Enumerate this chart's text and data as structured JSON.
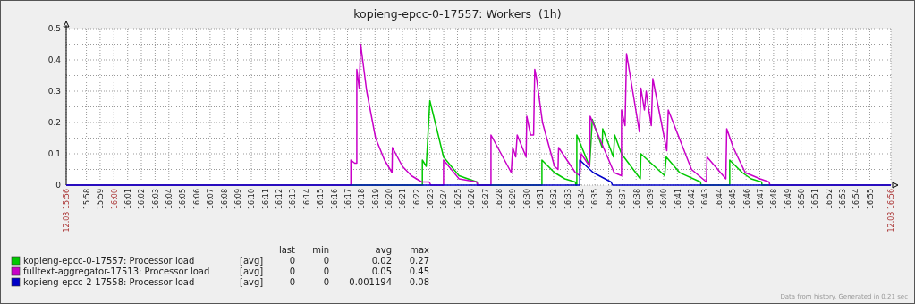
{
  "chart_data": {
    "type": "line",
    "title": "kopieng-epcc-0-17557: Workers  (1h)",
    "xlim": [
      15.9422,
      16.9422
    ],
    "xticks": [
      {
        "value": 15.9422,
        "label": "12.03 15:56"
      },
      {
        "value": 15.9667,
        "label": "15:58"
      },
      {
        "value": 15.9833,
        "label": "15:59"
      },
      {
        "value": 16,
        "label": "16:00"
      },
      {
        "value": 16.0167,
        "label": "16:01"
      },
      {
        "value": 16.0333,
        "label": "16:02"
      },
      {
        "value": 16.05,
        "label": "16:03"
      },
      {
        "value": 16.0667,
        "label": "16:04"
      },
      {
        "value": 16.0833,
        "label": "16:05"
      },
      {
        "value": 16.1,
        "label": "16:06"
      },
      {
        "value": 16.1167,
        "label": "16:07"
      },
      {
        "value": 16.1333,
        "label": "16:08"
      },
      {
        "value": 16.15,
        "label": "16:09"
      },
      {
        "value": 16.1667,
        "label": "16:10"
      },
      {
        "value": 16.1833,
        "label": "16:11"
      },
      {
        "value": 16.2,
        "label": "16:12"
      },
      {
        "value": 16.2167,
        "label": "16:13"
      },
      {
        "value": 16.2333,
        "label": "16:14"
      },
      {
        "value": 16.25,
        "label": "16:15"
      },
      {
        "value": 16.2667,
        "label": "16:16"
      },
      {
        "value": 16.2833,
        "label": "16:17"
      },
      {
        "value": 16.3,
        "label": "16:18"
      },
      {
        "value": 16.3167,
        "label": "16:19"
      },
      {
        "value": 16.3333,
        "label": "16:20"
      },
      {
        "value": 16.35,
        "label": "16:21"
      },
      {
        "value": 16.3667,
        "label": "16:22"
      },
      {
        "value": 16.3833,
        "label": "16:23"
      },
      {
        "value": 16.4,
        "label": "16:24"
      },
      {
        "value": 16.4167,
        "label": "16:25"
      },
      {
        "value": 16.4333,
        "label": "16:26"
      },
      {
        "value": 16.45,
        "label": "16:27"
      },
      {
        "value": 16.4667,
        "label": "16:28"
      },
      {
        "value": 16.4833,
        "label": "16:29"
      },
      {
        "value": 16.5,
        "label": "16:30"
      },
      {
        "value": 16.5167,
        "label": "16:31"
      },
      {
        "value": 16.5333,
        "label": "16:32"
      },
      {
        "value": 16.55,
        "label": "16:33"
      },
      {
        "value": 16.5667,
        "label": "16:34"
      },
      {
        "value": 16.5833,
        "label": "16:35"
      },
      {
        "value": 16.6,
        "label": "16:36"
      },
      {
        "value": 16.6167,
        "label": "16:37"
      },
      {
        "value": 16.6333,
        "label": "16:38"
      },
      {
        "value": 16.65,
        "label": "16:39"
      },
      {
        "value": 16.6667,
        "label": "16:40"
      },
      {
        "value": 16.6833,
        "label": "16:41"
      },
      {
        "value": 16.7,
        "label": "16:42"
      },
      {
        "value": 16.7167,
        "label": "16:43"
      },
      {
        "value": 16.7333,
        "label": "16:44"
      },
      {
        "value": 16.75,
        "label": "16:45"
      },
      {
        "value": 16.7667,
        "label": "16:46"
      },
      {
        "value": 16.7833,
        "label": "16:47"
      },
      {
        "value": 16.8,
        "label": "16:48"
      },
      {
        "value": 16.8167,
        "label": "16:49"
      },
      {
        "value": 16.8333,
        "label": "16:50"
      },
      {
        "value": 16.85,
        "label": "16:51"
      },
      {
        "value": 16.8667,
        "label": "16:52"
      },
      {
        "value": 16.8833,
        "label": "16:53"
      },
      {
        "value": 16.9,
        "label": "16:54"
      },
      {
        "value": 16.9167,
        "label": "16:55"
      },
      {
        "value": 16.9422,
        "label": "12.03 16:56"
      }
    ],
    "ylim": [
      0,
      0.5
    ],
    "yticks": [
      0,
      {
        "value": 0.05,
        "label": null
      },
      0.1,
      {
        "value": 0.15,
        "label": null
      },
      0.2,
      {
        "value": 0.25,
        "label": null
      },
      0.3,
      {
        "value": 0.35,
        "label": null
      },
      0.4,
      {
        "value": 0.45,
        "label": null
      },
      0.5
    ],
    "grid": true,
    "legend": "bottom",
    "line_style": "solid",
    "series": [
      {
        "name": "kopieng-epcc-0-17557: Processor load",
        "color": "#00c800",
        "x": [
          15.9422,
          16.3741,
          16.3741,
          16.3788,
          16.3832,
          16.3998,
          16.4186,
          16.4403,
          16.441,
          16.5191,
          16.5191,
          16.5343,
          16.5469,
          16.5596,
          16.5603,
          16.5614,
          16.5614,
          16.5769,
          16.5802,
          16.5921,
          16.5928,
          16.6058,
          16.6073,
          16.6156,
          16.6384,
          16.6391,
          16.668,
          16.6698,
          16.6861,
          16.7114,
          16.712,
          16.7468,
          16.7468,
          16.762,
          16.7728,
          16.7855,
          16.786,
          16.9422
        ],
        "values": [
          0,
          0,
          0.08,
          0.06,
          0.27,
          0.09,
          0.03,
          0.01,
          0,
          0,
          0.08,
          0.04,
          0.02,
          0.01,
          0,
          0,
          0.16,
          0.06,
          0.21,
          0.12,
          0.18,
          0.09,
          0.16,
          0.1,
          0.02,
          0.1,
          0.03,
          0.09,
          0.04,
          0.01,
          0,
          0,
          0.08,
          0.04,
          0.02,
          0.01,
          0,
          0
        ]
      },
      {
        "name": "fulltext-aggregator-17513: Processor load",
        "color": "#c800c8",
        "x": [
          15.9422,
          16.2874,
          16.2874,
          16.2921,
          16.2946,
          16.2946,
          16.2975,
          16.2993,
          16.3066,
          16.3174,
          16.3282,
          16.3373,
          16.3378,
          16.3499,
          16.3608,
          16.3734,
          16.3825,
          16.3843,
          16.3998,
          16.3998,
          16.4186,
          16.4403,
          16.441,
          16.4573,
          16.4573,
          16.4819,
          16.4837,
          16.4873,
          16.4891,
          16.4999,
          16.5007,
          16.5054,
          16.509,
          16.5104,
          16.5126,
          16.5198,
          16.5343,
          16.5386,
          16.5393,
          16.5596,
          16.565,
          16.5668,
          16.5769,
          16.5776,
          16.6066,
          16.6156,
          16.6156,
          16.6199,
          16.6217,
          16.6373,
          16.6391,
          16.6434,
          16.6456,
          16.6481,
          16.6517,
          16.6536,
          16.6705,
          16.6723,
          16.7005,
          16.7186,
          16.7193,
          16.7421,
          16.7432,
          16.7511,
          16.7656,
          16.7837,
          16.7945,
          16.7956,
          16.9422
        ],
        "values": [
          0,
          0,
          0.08,
          0.07,
          0.07,
          0.37,
          0.31,
          0.45,
          0.3,
          0.15,
          0.08,
          0.04,
          0.12,
          0.06,
          0.03,
          0.01,
          0.01,
          0,
          0,
          0.08,
          0.02,
          0.01,
          0,
          0,
          0.16,
          0.04,
          0.12,
          0.09,
          0.16,
          0.09,
          0.22,
          0.16,
          0.16,
          0.37,
          0.34,
          0.2,
          0.06,
          0.05,
          0.12,
          0.04,
          0.03,
          0.1,
          0.06,
          0.22,
          0.04,
          0.03,
          0.24,
          0.19,
          0.42,
          0.17,
          0.31,
          0.24,
          0.3,
          0.25,
          0.19,
          0.34,
          0.11,
          0.24,
          0.05,
          0.01,
          0.09,
          0.02,
          0.18,
          0.12,
          0.04,
          0.02,
          0.01,
          0,
          0
        ]
      },
      {
        "name": "kopieng-epcc-2-17558: Processor load",
        "color": "#0000c8",
        "x": [
          15.9422,
          16.565,
          16.565,
          16.5813,
          16.6029,
          16.6048,
          16.9422
        ],
        "values": [
          0,
          0,
          0.08,
          0.04,
          0.01,
          0,
          0
        ]
      }
    ],
    "annotations": [
      "last",
      "min",
      "avg",
      "max",
      "[avg]",
      "0",
      "0",
      "0.02",
      "0.27",
      "[avg]",
      "0",
      "0",
      "0.05",
      "0.45",
      "[avg]",
      "0",
      "0",
      "0.001194",
      "0.08",
      "Data from history. Generated in 0.21 sec"
    ]
  }
}
